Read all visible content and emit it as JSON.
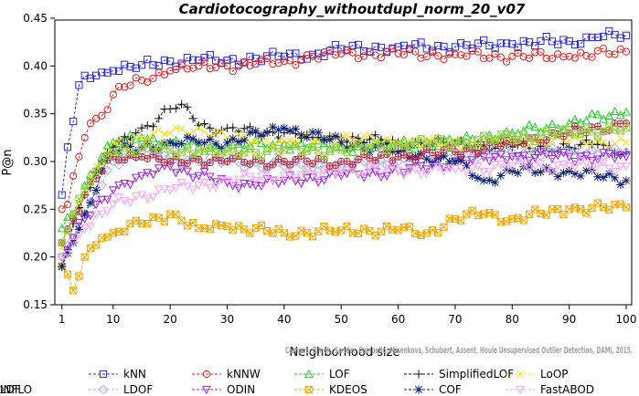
{
  "chart_data": {
    "type": "line",
    "title": "Cardiotocography_withoutdupl_norm_20_v07",
    "xlabel": "Neighborhood size",
    "ylabel": "P@n",
    "xlim": [
      1,
      100
    ],
    "ylim": [
      0.15,
      0.45
    ],
    "xticks": [
      1,
      10,
      20,
      30,
      40,
      50,
      60,
      70,
      80,
      90,
      100
    ],
    "yticks": [
      "0.15",
      "0.20",
      "0.25",
      "0.30",
      "0.35",
      "0.40",
      "0.45"
    ],
    "watermark": "Campos, Zimek, Sander, Campello, Micenkova, Schubert, Assent, Houle Unsupervised Outlier Detection, DAMI, 2015.",
    "legend_position": "bottom",
    "series": [
      {
        "name": "kNN",
        "color": "#2b2bd9",
        "marker": "square",
        "x": [
          1,
          2,
          3,
          4,
          5,
          7,
          10,
          15,
          20,
          25,
          30,
          35,
          40,
          45,
          50,
          60,
          70,
          80,
          90,
          95,
          100
        ],
        "y": [
          0.265,
          0.315,
          0.342,
          0.38,
          0.39,
          0.39,
          0.395,
          0.401,
          0.405,
          0.406,
          0.406,
          0.408,
          0.41,
          0.412,
          0.418,
          0.42,
          0.42,
          0.423,
          0.426,
          0.43,
          0.432
        ]
      },
      {
        "name": "kNNW",
        "color": "#e02020",
        "marker": "circle",
        "x": [
          1,
          2,
          3,
          4,
          5,
          6,
          7,
          8,
          10,
          12,
          15,
          20,
          25,
          30,
          35,
          40,
          45,
          50,
          60,
          70,
          80,
          90,
          100
        ],
        "y": [
          0.25,
          0.255,
          0.285,
          0.305,
          0.325,
          0.34,
          0.345,
          0.348,
          0.37,
          0.378,
          0.385,
          0.395,
          0.4,
          0.4,
          0.402,
          0.405,
          0.41,
          0.413,
          0.413,
          0.412,
          0.41,
          0.41,
          0.415
        ]
      },
      {
        "name": "LOF",
        "color": "#22cc22",
        "marker": "triangle",
        "x": [
          1,
          3,
          5,
          8,
          10,
          15,
          20,
          25,
          30,
          40,
          50,
          60,
          70,
          80,
          90,
          100
        ],
        "y": [
          0.23,
          0.245,
          0.275,
          0.305,
          0.32,
          0.325,
          0.32,
          0.315,
          0.315,
          0.318,
          0.315,
          0.318,
          0.32,
          0.33,
          0.34,
          0.352
        ]
      },
      {
        "name": "SimplifiedLOF",
        "color": "#111111",
        "marker": "plus",
        "x": [
          1,
          3,
          5,
          8,
          10,
          14,
          18,
          20,
          22,
          24,
          27,
          30,
          35,
          40,
          45,
          50,
          60,
          70,
          80,
          90,
          95,
          100
        ],
        "y": [
          0.19,
          0.235,
          0.265,
          0.3,
          0.315,
          0.33,
          0.345,
          0.355,
          0.36,
          0.345,
          0.335,
          0.335,
          0.33,
          0.33,
          0.325,
          0.325,
          0.32,
          0.318,
          0.315,
          0.315,
          0.318,
          0.31
        ]
      },
      {
        "name": "LoOP",
        "color": "#f5e020",
        "marker": "x",
        "x": [
          1,
          3,
          5,
          8,
          10,
          15,
          20,
          25,
          30,
          40,
          50,
          60,
          70,
          80,
          90,
          100
        ],
        "y": [
          0.21,
          0.245,
          0.27,
          0.3,
          0.32,
          0.325,
          0.33,
          0.335,
          0.325,
          0.322,
          0.325,
          0.32,
          0.318,
          0.32,
          0.322,
          0.32
        ]
      },
      {
        "name": "LDOF",
        "color": "#aaaaee",
        "marker": "diamond",
        "x": [
          1,
          3,
          5,
          8,
          10,
          15,
          20,
          25,
          30,
          40,
          50,
          60,
          70,
          80,
          90,
          100
        ],
        "y": [
          0.2,
          0.22,
          0.245,
          0.275,
          0.3,
          0.31,
          0.305,
          0.3,
          0.3,
          0.295,
          0.295,
          0.3,
          0.305,
          0.31,
          0.31,
          0.31
        ]
      },
      {
        "name": "ODIN",
        "color": "#9922dd",
        "marker": "triangle-down",
        "x": [
          1,
          3,
          5,
          8,
          10,
          15,
          20,
          25,
          30,
          35,
          40,
          50,
          60,
          70,
          80,
          90,
          100
        ],
        "y": [
          0.2,
          0.22,
          0.24,
          0.26,
          0.27,
          0.285,
          0.295,
          0.285,
          0.278,
          0.275,
          0.28,
          0.285,
          0.29,
          0.3,
          0.305,
          0.305,
          0.305
        ]
      },
      {
        "name": "KDEOS",
        "color": "#f0a800",
        "marker": "square-x",
        "x": [
          1,
          3,
          5,
          8,
          10,
          15,
          20,
          25,
          30,
          40,
          50,
          60,
          65,
          70,
          75,
          80,
          90,
          100
        ],
        "y": [
          0.19,
          0.165,
          0.2,
          0.22,
          0.225,
          0.235,
          0.245,
          0.23,
          0.232,
          0.225,
          0.228,
          0.228,
          0.225,
          0.24,
          0.245,
          0.24,
          0.25,
          0.252
        ]
      },
      {
        "name": "COF",
        "color": "#102070",
        "marker": "star",
        "x": [
          1,
          3,
          5,
          8,
          10,
          15,
          20,
          25,
          30,
          40,
          50,
          60,
          70,
          75,
          80,
          90,
          100
        ],
        "y": [
          0.19,
          0.215,
          0.245,
          0.29,
          0.31,
          0.315,
          0.32,
          0.32,
          0.32,
          0.335,
          0.32,
          0.31,
          0.3,
          0.28,
          0.29,
          0.29,
          0.28
        ]
      },
      {
        "name": "FastABOD",
        "color": "#f2a8f0",
        "marker": "triangle-down",
        "x": [
          1,
          3,
          5,
          8,
          10,
          15,
          20,
          25,
          30,
          40,
          50,
          60,
          70,
          80,
          90,
          100
        ],
        "y": [
          0.2,
          0.215,
          0.23,
          0.245,
          0.255,
          0.265,
          0.27,
          0.275,
          0.28,
          0.285,
          0.29,
          0.29,
          0.292,
          0.295,
          0.295,
          0.295
        ]
      },
      {
        "name": "LDF",
        "color": "#b03040",
        "marker": "circle-plus",
        "x": [
          1,
          3,
          5,
          8,
          10,
          15,
          20,
          25,
          30,
          40,
          50,
          60,
          70,
          80,
          90,
          100
        ],
        "y": [
          0.215,
          0.24,
          0.265,
          0.29,
          0.305,
          0.305,
          0.3,
          0.302,
          0.3,
          0.3,
          0.3,
          0.305,
          0.31,
          0.32,
          0.33,
          0.34
        ]
      },
      {
        "name": "INFLO",
        "color": "#99cc44",
        "marker": "square-x",
        "x": [
          1,
          3,
          5,
          8,
          10,
          15,
          20,
          25,
          30,
          40,
          50,
          60,
          70,
          80,
          90,
          100
        ],
        "y": [
          0.215,
          0.245,
          0.27,
          0.3,
          0.31,
          0.315,
          0.312,
          0.31,
          0.31,
          0.312,
          0.312,
          0.318,
          0.32,
          0.325,
          0.33,
          0.335
        ]
      }
    ]
  }
}
